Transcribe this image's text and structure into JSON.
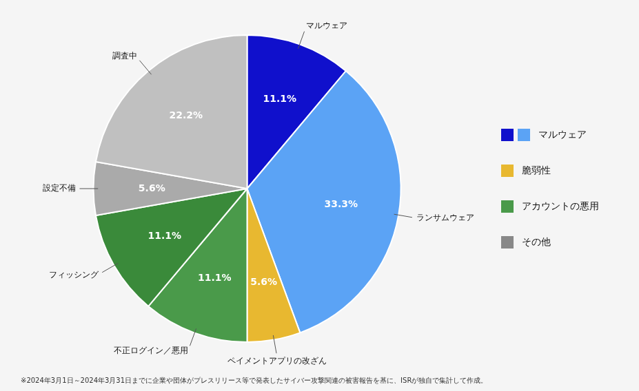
{
  "chart_data": {
    "type": "pie",
    "categories": [
      "マルウェア",
      "ランサムウェア",
      "ペイメントアプリの改ざん",
      "不正ログイン／悪用",
      "フィッシング",
      "設定不備",
      "調査中"
    ],
    "values": [
      11.1,
      33.3,
      5.6,
      11.1,
      11.1,
      5.6,
      22.2
    ],
    "value_labels": [
      "11.1%",
      "33.3%",
      "5.6%",
      "11.1%",
      "11.1%",
      "5.6%",
      "22.2%"
    ],
    "colors": [
      "#1010cc",
      "#5ba3f5",
      "#e8b830",
      "#4a9a4a",
      "#3a8a3a",
      "#aaaaaa",
      "#c0c0c0"
    ],
    "data_labels": true,
    "legend_items": [
      {
        "name": "マルウェア",
        "colors": [
          "#1010cc",
          "#5ba3f5"
        ]
      },
      {
        "name": "脆弱性",
        "colors": [
          "#e8b830"
        ]
      },
      {
        "name": "アカウントの悪用",
        "colors": [
          "#4a9a4a"
        ]
      },
      {
        "name": "その他",
        "colors": [
          "#888888"
        ]
      }
    ],
    "footnote": "※2024年3月1日～2024年3月31日までに企業や団体がプレスリリース等で発表したサイバー攻撃関連の被害報告を基に、ISRが独自で集計して作成。"
  }
}
